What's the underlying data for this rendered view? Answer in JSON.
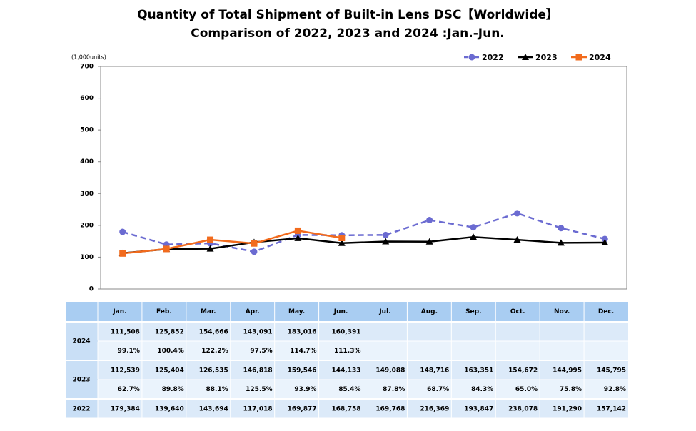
{
  "chart_data": {
    "type": "line",
    "title": "Quantity of Total Shipment of Built-in Lens DSC【Worldwide】",
    "subtitle": "Comparison of 2022, 2023 and 2024 :Jan.-Jun.",
    "y_unit": "(1,000units)",
    "categories": [
      "Jan.",
      "Feb.",
      "Mar.",
      "Apr.",
      "May.",
      "Jun.",
      "Jul.",
      "Aug.",
      "Sep.",
      "Oct.",
      "Nov.",
      "Dec."
    ],
    "ylim": [
      0,
      700
    ],
    "yticks": [
      0,
      100,
      200,
      300,
      400,
      500,
      600,
      700
    ],
    "grid": false,
    "legend": "top-right",
    "series": [
      {
        "name": "2022",
        "color": "#6b6bd1",
        "dash": true,
        "marker": "circle",
        "values": [
          179.384,
          139.64,
          143.694,
          117.018,
          169.877,
          168.758,
          169.768,
          216.369,
          193.847,
          238.078,
          191.29,
          157.142
        ],
        "value_labels": [
          "179,384",
          "139,640",
          "143,694",
          "117,018",
          "169,877",
          "168,758",
          "169,768",
          "216,369",
          "193,847",
          "238,078",
          "191,290",
          "157,142"
        ]
      },
      {
        "name": "2023",
        "color": "#000000",
        "dash": false,
        "marker": "triangle",
        "values": [
          112.539,
          125.404,
          126.535,
          146.818,
          159.546,
          144.133,
          149.088,
          148.716,
          163.351,
          154.672,
          144.995,
          145.795
        ],
        "value_labels": [
          "112,539",
          "125,404",
          "126,535",
          "146,818",
          "159,546",
          "144,133",
          "149,088",
          "148,716",
          "163,351",
          "154,672",
          "144,995",
          "145,795"
        ],
        "ratio_labels": [
          "62.7%",
          "89.8%",
          "88.1%",
          "125.5%",
          "93.9%",
          "85.4%",
          "87.8%",
          "68.7%",
          "84.3%",
          "65.0%",
          "75.8%",
          "92.8%"
        ]
      },
      {
        "name": "2024",
        "color": "#f26b1d",
        "dash": false,
        "marker": "square",
        "values": [
          111.508,
          125.852,
          154.666,
          143.091,
          183.016,
          160.391,
          null,
          null,
          null,
          null,
          null,
          null
        ],
        "value_labels": [
          "111,508",
          "125,852",
          "154,666",
          "143,091",
          "183,016",
          "160,391",
          null,
          null,
          null,
          null,
          null,
          null
        ],
        "ratio_labels": [
          "99.1%",
          "100.4%",
          "122.2%",
          "97.5%",
          "114.7%",
          "111.3%",
          null,
          null,
          null,
          null,
          null,
          null
        ]
      }
    ]
  }
}
